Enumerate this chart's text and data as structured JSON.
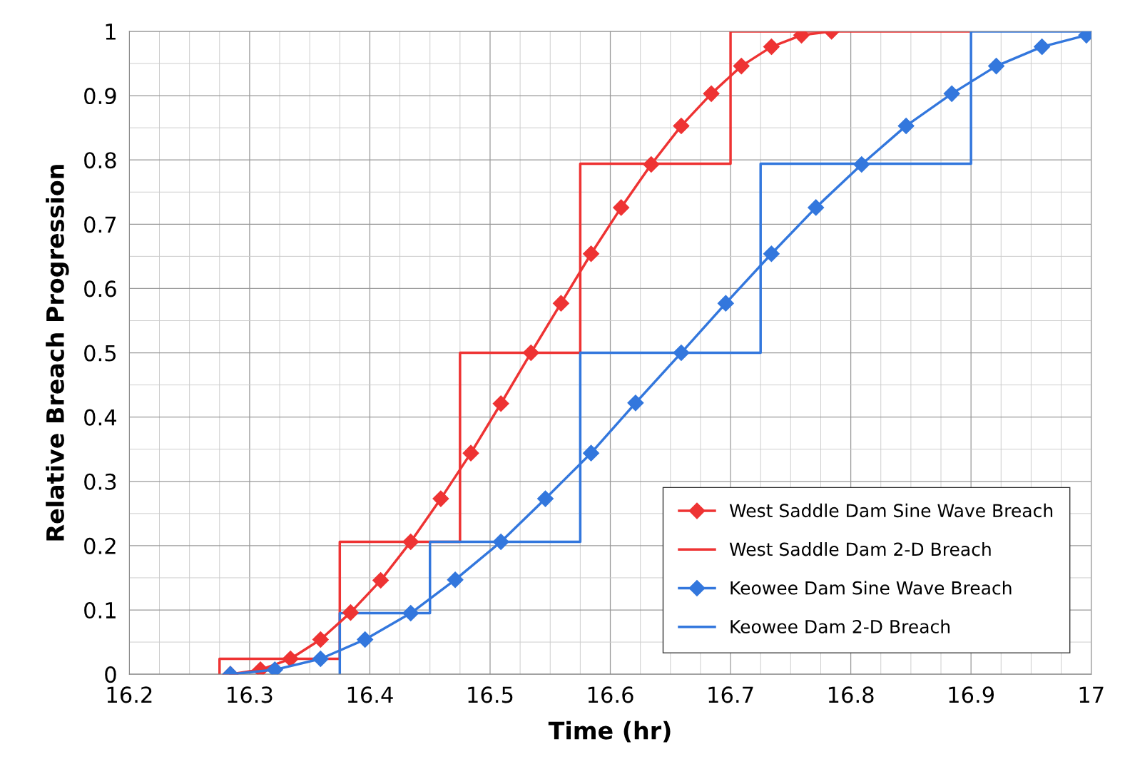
{
  "chart_data": {
    "type": "line",
    "xlabel": "Time (hr)",
    "ylabel": "Relative Breach Progression",
    "xlim": [
      16.2,
      17
    ],
    "xticks": [
      16.2,
      16.3,
      16.4,
      16.5,
      16.6,
      16.7,
      16.8,
      16.9,
      17
    ],
    "ylim": [
      0,
      1
    ],
    "yticks": [
      0,
      0.1,
      0.2,
      0.3,
      0.4,
      0.5,
      0.6,
      0.7,
      0.8,
      0.9,
      1
    ],
    "grid": true,
    "legend": "bottom right",
    "series": [
      {
        "name": "West Saddle Dam Sine Wave Breach",
        "marker": "diamond",
        "color": "#ee3333",
        "x": [
          16.284,
          16.309,
          16.334,
          16.359,
          16.384,
          16.409,
          16.434,
          16.459,
          16.484,
          16.509,
          16.534,
          16.559,
          16.584,
          16.609,
          16.634,
          16.659,
          16.684,
          16.709,
          16.734,
          16.759,
          16.784
        ],
        "values": [
          0,
          0.007,
          0.024,
          0.054,
          0.096,
          0.146,
          0.206,
          0.273,
          0.344,
          0.421,
          0.5,
          0.577,
          0.654,
          0.726,
          0.793,
          0.853,
          0.903,
          0.946,
          0.976,
          0.994,
          1.0
        ]
      },
      {
        "name": "West Saddle Dam 2-D Breach",
        "type": "step",
        "color": "#ee3333",
        "x": [
          16.275,
          16.275,
          16.375,
          16.475,
          16.575,
          16.7,
          16.9
        ],
        "values": [
          0,
          0.024,
          0.206,
          0.5,
          0.794,
          1.0,
          1.0
        ]
      },
      {
        "name": "Keowee Dam Sine Wave Breach",
        "marker": "diamond",
        "color": "#3377dd",
        "x": [
          16.284,
          16.321,
          16.359,
          16.396,
          16.434,
          16.471,
          16.509,
          16.546,
          16.584,
          16.621,
          16.659,
          16.696,
          16.734,
          16.771,
          16.809,
          16.846,
          16.884,
          16.921,
          16.959,
          16.996
        ],
        "values": [
          0,
          0.007,
          0.024,
          0.054,
          0.095,
          0.147,
          0.206,
          0.273,
          0.344,
          0.422,
          0.5,
          0.577,
          0.654,
          0.726,
          0.793,
          0.853,
          0.903,
          0.946,
          0.976,
          0.994
        ]
      },
      {
        "name": "Keowee Dam 2-D Breach",
        "type": "step",
        "color": "#3377dd",
        "x": [
          16.375,
          16.375,
          16.45,
          16.575,
          16.725,
          16.9,
          17
        ],
        "values": [
          0,
          0.095,
          0.206,
          0.5,
          0.794,
          1.0,
          1.0
        ]
      }
    ]
  }
}
